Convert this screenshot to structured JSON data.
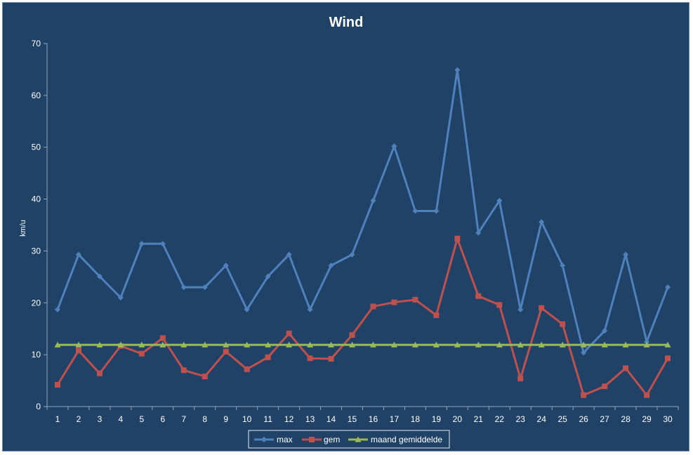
{
  "chart_data": {
    "type": "line",
    "title": "Wind",
    "xlabel": "",
    "ylabel": "km/u",
    "ylim": [
      0,
      70
    ],
    "yticks": [
      0,
      10,
      20,
      30,
      40,
      50,
      60,
      70
    ],
    "categories": [
      "1",
      "2",
      "3",
      "4",
      "5",
      "6",
      "7",
      "8",
      "9",
      "10",
      "11",
      "12",
      "13",
      "14",
      "15",
      "16",
      "17",
      "18",
      "19",
      "20",
      "21",
      "22",
      "23",
      "24",
      "25",
      "26",
      "27",
      "28",
      "29",
      "30"
    ],
    "grid": false,
    "legend_position": "bottom",
    "series": [
      {
        "name": "max",
        "color": "#4f81bd",
        "marker": "diamond",
        "values": [
          18.7,
          29.3,
          25.1,
          21.0,
          31.4,
          31.4,
          23.0,
          23.0,
          27.2,
          18.7,
          25.1,
          29.3,
          18.7,
          27.2,
          29.3,
          39.7,
          50.2,
          37.7,
          37.7,
          64.9,
          33.5,
          39.7,
          18.7,
          35.6,
          27.2,
          10.4,
          14.6,
          29.3,
          12.5,
          23.0
        ]
      },
      {
        "name": "gem",
        "color": "#c0504d",
        "marker": "square",
        "values": [
          4.2,
          10.8,
          6.4,
          11.7,
          10.2,
          13.2,
          7.0,
          5.8,
          10.6,
          7.2,
          9.5,
          14.1,
          9.3,
          9.2,
          13.8,
          19.3,
          20.1,
          20.6,
          17.6,
          32.4,
          21.3,
          19.6,
          5.4,
          19.0,
          15.9,
          2.2,
          3.9,
          7.4,
          2.2,
          9.3
        ]
      },
      {
        "name": "maand gemiddelde",
        "color": "#9bbb59",
        "marker": "triangle",
        "values": [
          11.9,
          11.9,
          11.9,
          11.9,
          11.9,
          11.9,
          11.9,
          11.9,
          11.9,
          11.9,
          11.9,
          11.9,
          11.9,
          11.9,
          11.9,
          11.9,
          11.9,
          11.9,
          11.9,
          11.9,
          11.9,
          11.9,
          11.9,
          11.9,
          11.9,
          11.9,
          11.9,
          11.9,
          11.9,
          11.9
        ]
      }
    ]
  }
}
